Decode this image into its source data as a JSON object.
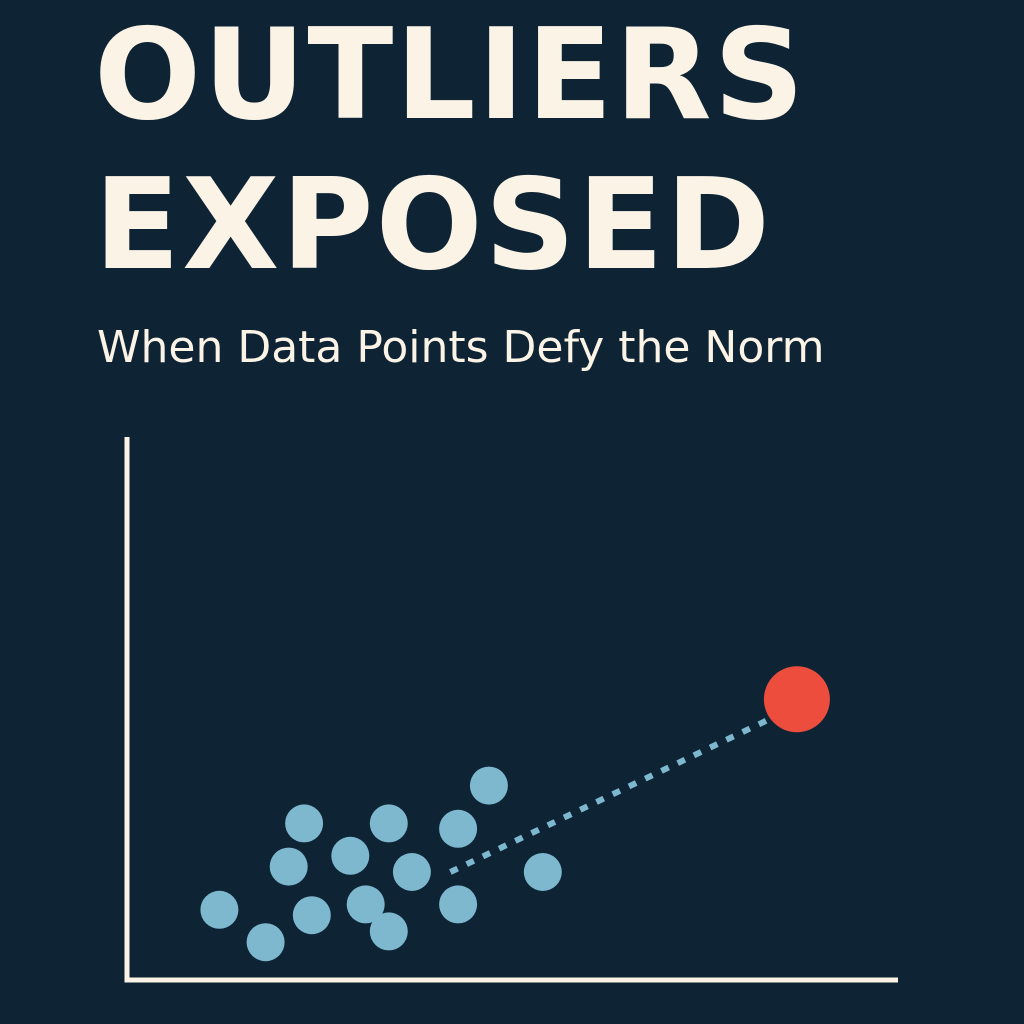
{
  "title_lines": [
    "OUTLIERS",
    "EXPOSED"
  ],
  "subtitle": "When Data Points Defy the Norm",
  "colors": {
    "background": "#0e2435",
    "text": "#fbf3e6",
    "axis": "#fbf3e6",
    "point": "#7db8cf",
    "outlier": "#ec4d3d",
    "connector": "#7db8cf"
  },
  "chart_data": {
    "type": "scatter",
    "title": "",
    "xlabel": "",
    "ylabel": "",
    "xlim": [
      0,
      10
    ],
    "ylim": [
      0,
      10
    ],
    "grid": false,
    "series": [
      {
        "points": [
          {
            "x": 1.2,
            "y": 1.3
          },
          {
            "x": 1.8,
            "y": 0.7
          },
          {
            "x": 2.1,
            "y": 2.1
          },
          {
            "x": 2.4,
            "y": 1.2
          },
          {
            "x": 2.3,
            "y": 2.9
          },
          {
            "x": 2.9,
            "y": 2.3
          },
          {
            "x": 3.1,
            "y": 1.4
          },
          {
            "x": 3.4,
            "y": 0.9
          },
          {
            "x": 3.4,
            "y": 2.9
          },
          {
            "x": 3.7,
            "y": 2.0
          },
          {
            "x": 4.3,
            "y": 1.4
          },
          {
            "x": 4.3,
            "y": 2.8
          },
          {
            "x": 4.7,
            "y": 3.6
          },
          {
            "x": 5.4,
            "y": 2.0
          }
        ]
      },
      {
        "outlier": true,
        "points": [
          {
            "x": 8.7,
            "y": 5.2
          }
        ]
      }
    ],
    "connector": {
      "from": {
        "x": 4.2,
        "y": 2.0
      },
      "to": {
        "x": 8.3,
        "y": 4.8
      }
    }
  }
}
